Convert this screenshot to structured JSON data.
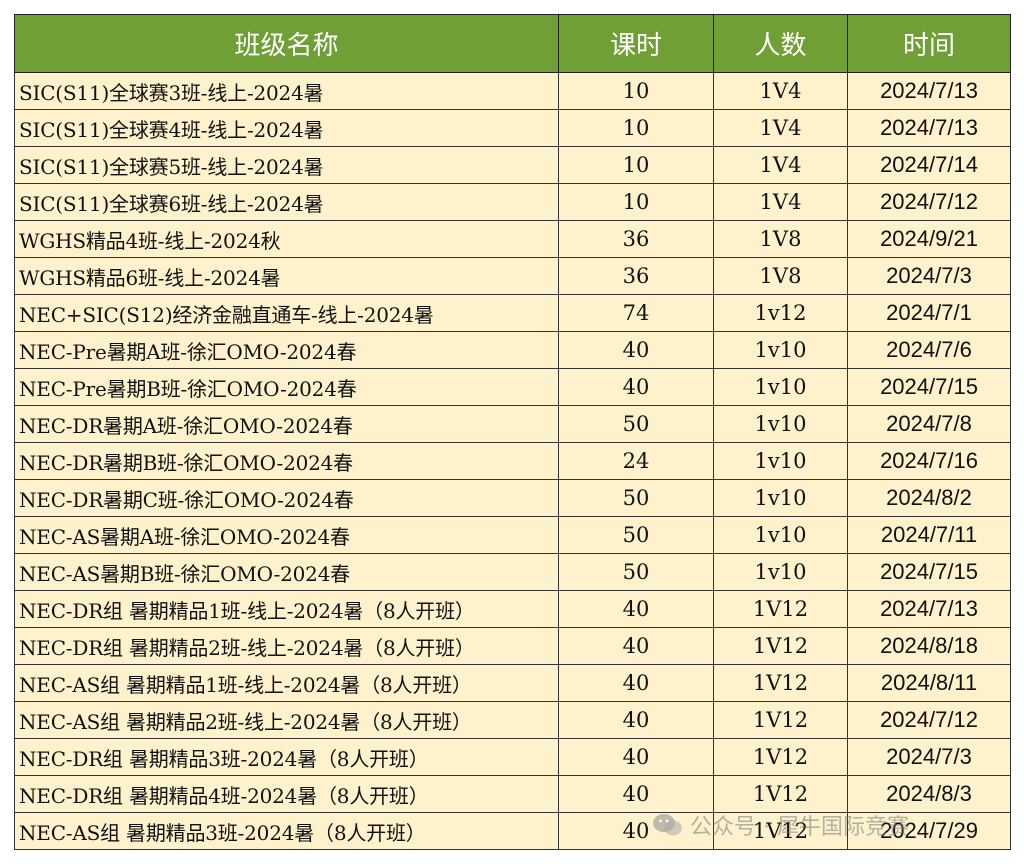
{
  "table": {
    "headers": [
      "班级名称",
      "课时",
      "人数",
      "时间"
    ],
    "rows": [
      {
        "name": "SIC(S11)全球赛3班-线上-2024暑",
        "hours": "10",
        "size": "1V4",
        "date": "2024/7/13"
      },
      {
        "name": "SIC(S11)全球赛4班-线上-2024暑",
        "hours": "10",
        "size": "1V4",
        "date": "2024/7/13"
      },
      {
        "name": "SIC(S11)全球赛5班-线上-2024暑",
        "hours": "10",
        "size": "1V4",
        "date": "2024/7/14"
      },
      {
        "name": "SIC(S11)全球赛6班-线上-2024暑",
        "hours": "10",
        "size": "1V4",
        "date": "2024/7/12"
      },
      {
        "name": "WGHS精品4班-线上-2024秋",
        "hours": "36",
        "size": "1V8",
        "date": "2024/9/21"
      },
      {
        "name": "WGHS精品6班-线上-2024暑",
        "hours": "36",
        "size": "1V8",
        "date": "2024/7/3"
      },
      {
        "name": "NEC+SIC(S12)经济金融直通车-线上-2024暑",
        "hours": "74",
        "size": "1v12",
        "date": "2024/7/1"
      },
      {
        "name": "NEC-Pre暑期A班-徐汇OMO-2024春",
        "hours": "40",
        "size": "1v10",
        "date": "2024/7/6"
      },
      {
        "name": "NEC-Pre暑期B班-徐汇OMO-2024春",
        "hours": "40",
        "size": "1v10",
        "date": "2024/7/15"
      },
      {
        "name": "NEC-DR暑期A班-徐汇OMO-2024春",
        "hours": "50",
        "size": "1v10",
        "date": "2024/7/8"
      },
      {
        "name": "NEC-DR暑期B班-徐汇OMO-2024春",
        "hours": "24",
        "size": "1v10",
        "date": "2024/7/16"
      },
      {
        "name": "NEC-DR暑期C班-徐汇OMO-2024春",
        "hours": "50",
        "size": "1v10",
        "date": "2024/8/2"
      },
      {
        "name": "NEC-AS暑期A班-徐汇OMO-2024春",
        "hours": "50",
        "size": "1v10",
        "date": "2024/7/11"
      },
      {
        "name": "NEC-AS暑期B班-徐汇OMO-2024春",
        "hours": "50",
        "size": "1v10",
        "date": "2024/7/15"
      },
      {
        "name": "NEC-DR组 暑期精品1班-线上-2024暑（8人开班）",
        "hours": "40",
        "size": "1V12",
        "date": "2024/7/13"
      },
      {
        "name": "NEC-DR组 暑期精品2班-线上-2024暑（8人开班）",
        "hours": "40",
        "size": "1V12",
        "date": "2024/8/18"
      },
      {
        "name": "NEC-AS组 暑期精品1班-线上-2024暑（8人开班）",
        "hours": "40",
        "size": "1V12",
        "date": "2024/8/11"
      },
      {
        "name": "NEC-AS组 暑期精品2班-线上-2024暑（8人开班）",
        "hours": "40",
        "size": "1V12",
        "date": "2024/7/12"
      },
      {
        "name": "NEC-DR组 暑期精品3班-2024暑（8人开班）",
        "hours": "40",
        "size": "1V12",
        "date": "2024/7/3"
      },
      {
        "name": "NEC-DR组 暑期精品4班-2024暑（8人开班）",
        "hours": "40",
        "size": "1V12",
        "date": "2024/8/3"
      },
      {
        "name": "NEC-AS组 暑期精品3班-2024暑（8人开班）",
        "hours": "40",
        "size": "1V12",
        "date": "2024/7/29"
      }
    ]
  },
  "watermark": {
    "text": "公众号 · 犀牛国际竞赛",
    "icon": "wechat-icon"
  },
  "colors": {
    "header_bg": "#70a035",
    "header_text": "#ffffff",
    "cell_bg": "#fdf2cc"
  }
}
